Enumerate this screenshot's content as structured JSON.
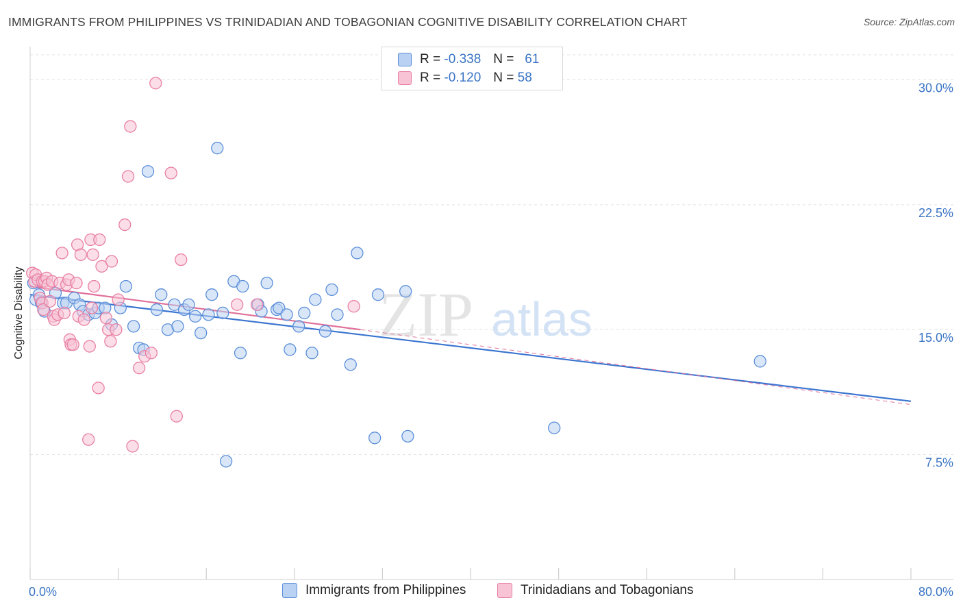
{
  "title": "IMMIGRANTS FROM PHILIPPINES VS TRINIDADIAN AND TOBAGONIAN COGNITIVE DISABILITY CORRELATION CHART",
  "source": "Source: ZipAtlas.com",
  "colors": {
    "blue": "#5b8fd9",
    "blue_fill": "#b9d1f2",
    "blue_line": "#3a74d0",
    "pink": "#e87fa3",
    "pink_fill": "#f7c3d5",
    "pink_line": "#e0709a",
    "axis_label": "#3a74c4",
    "grid": "#e2e2e2"
  },
  "legend": {
    "rows": [
      {
        "r_label": "R =",
        "r_value": "-0.338",
        "n_label": "N =",
        "n_value": "61",
        "series": "blue"
      },
      {
        "r_label": "R =",
        "r_value": "-0.120",
        "n_label": "N =",
        "n_value": "58",
        "series": "pink"
      }
    ]
  },
  "bottom_legend": [
    {
      "label": "Immigrants from Philippines",
      "series": "blue"
    },
    {
      "label": "Trinidadians and Tobagonians",
      "series": "pink"
    }
  ],
  "watermark": {
    "zip": "ZIP",
    "atlas": "atlas"
  },
  "chart_data": {
    "type": "scatter",
    "title": "IMMIGRANTS FROM PHILIPPINES VS TRINIDADIAN AND TOBAGONIAN COGNITIVE DISABILITY CORRELATION CHART",
    "xlabel": "",
    "ylabel": "Cognitive Disability",
    "xlim": [
      0,
      80
    ],
    "ylim": [
      0,
      31.5
    ],
    "x_tick_labels": [
      "0.0%",
      "80.0%"
    ],
    "y_ticks": [
      7.5,
      15.0,
      22.5,
      30.0
    ],
    "y_tick_labels": [
      "7.5%",
      "15.0%",
      "22.5%",
      "30.0%"
    ],
    "grid": true,
    "series": [
      {
        "name": "Immigrants from Philippines",
        "color": "blue",
        "points": [
          [
            0.3,
            17.8
          ],
          [
            0.5,
            16.8
          ],
          [
            0.8,
            17.1
          ],
          [
            1.0,
            16.6
          ],
          [
            1.3,
            16.1
          ],
          [
            2.3,
            17.2
          ],
          [
            3.0,
            16.6
          ],
          [
            3.3,
            16.6
          ],
          [
            4.0,
            16.9
          ],
          [
            4.5,
            16.5
          ],
          [
            4.8,
            16.1
          ],
          [
            5.3,
            15.9
          ],
          [
            5.9,
            16.0
          ],
          [
            6.2,
            16.3
          ],
          [
            6.8,
            16.3
          ],
          [
            7.4,
            15.3
          ],
          [
            8.2,
            16.3
          ],
          [
            8.7,
            17.6
          ],
          [
            9.4,
            15.2
          ],
          [
            9.9,
            13.9
          ],
          [
            10.3,
            13.8
          ],
          [
            10.7,
            24.5
          ],
          [
            11.5,
            16.2
          ],
          [
            11.9,
            17.1
          ],
          [
            12.5,
            15.0
          ],
          [
            13.1,
            16.5
          ],
          [
            13.4,
            15.2
          ],
          [
            14.0,
            16.2
          ],
          [
            14.4,
            16.5
          ],
          [
            15.0,
            15.8
          ],
          [
            15.5,
            14.8
          ],
          [
            16.2,
            15.9
          ],
          [
            16.5,
            17.1
          ],
          [
            17.0,
            25.9
          ],
          [
            17.5,
            16.0
          ],
          [
            17.8,
            7.1
          ],
          [
            18.5,
            17.9
          ],
          [
            19.1,
            13.6
          ],
          [
            19.3,
            17.6
          ],
          [
            20.7,
            16.5
          ],
          [
            21.0,
            16.1
          ],
          [
            21.5,
            17.8
          ],
          [
            22.4,
            16.2
          ],
          [
            22.6,
            16.3
          ],
          [
            23.3,
            15.9
          ],
          [
            23.6,
            13.8
          ],
          [
            24.4,
            15.2
          ],
          [
            24.9,
            16.0
          ],
          [
            25.6,
            13.6
          ],
          [
            25.9,
            16.8
          ],
          [
            26.8,
            14.9
          ],
          [
            27.4,
            17.4
          ],
          [
            27.9,
            15.9
          ],
          [
            29.1,
            12.9
          ],
          [
            29.7,
            19.6
          ],
          [
            31.3,
            8.5
          ],
          [
            31.6,
            17.1
          ],
          [
            34.1,
            17.3
          ],
          [
            34.3,
            8.6
          ],
          [
            47.6,
            9.1
          ],
          [
            66.3,
            13.1
          ]
        ]
      },
      {
        "name": "Trinidadians and Tobagonians",
        "color": "pink",
        "points": [
          [
            0.2,
            18.4
          ],
          [
            0.4,
            17.9
          ],
          [
            0.5,
            18.3
          ],
          [
            0.7,
            18.0
          ],
          [
            0.9,
            16.9
          ],
          [
            1.1,
            17.9
          ],
          [
            1.1,
            16.6
          ],
          [
            1.2,
            16.2
          ],
          [
            1.3,
            17.9
          ],
          [
            1.5,
            18.1
          ],
          [
            1.6,
            17.7
          ],
          [
            1.8,
            16.7
          ],
          [
            2.0,
            17.9
          ],
          [
            2.1,
            15.8
          ],
          [
            2.2,
            15.6
          ],
          [
            2.5,
            15.9
          ],
          [
            2.7,
            17.8
          ],
          [
            2.9,
            19.6
          ],
          [
            3.1,
            16.0
          ],
          [
            3.3,
            17.7
          ],
          [
            3.5,
            18.0
          ],
          [
            3.6,
            14.4
          ],
          [
            3.7,
            14.1
          ],
          [
            3.9,
            14.1
          ],
          [
            4.2,
            17.8
          ],
          [
            4.3,
            20.1
          ],
          [
            4.4,
            15.8
          ],
          [
            4.6,
            19.5
          ],
          [
            4.9,
            15.6
          ],
          [
            5.3,
            8.4
          ],
          [
            5.4,
            14.0
          ],
          [
            5.5,
            20.4
          ],
          [
            5.6,
            16.3
          ],
          [
            5.7,
            19.5
          ],
          [
            5.8,
            17.6
          ],
          [
            6.2,
            11.5
          ],
          [
            6.3,
            20.4
          ],
          [
            6.5,
            18.8
          ],
          [
            6.9,
            15.7
          ],
          [
            7.1,
            15.0
          ],
          [
            7.3,
            14.3
          ],
          [
            7.4,
            19.1
          ],
          [
            7.8,
            15.0
          ],
          [
            8.0,
            16.8
          ],
          [
            8.6,
            21.3
          ],
          [
            8.9,
            24.2
          ],
          [
            9.1,
            27.2
          ],
          [
            9.3,
            8.0
          ],
          [
            9.9,
            12.7
          ],
          [
            10.4,
            13.4
          ],
          [
            11.0,
            13.6
          ],
          [
            11.4,
            29.8
          ],
          [
            12.8,
            24.4
          ],
          [
            13.3,
            9.8
          ],
          [
            13.7,
            19.2
          ],
          [
            18.8,
            16.5
          ],
          [
            20.6,
            16.5
          ],
          [
            29.4,
            16.4
          ]
        ]
      }
    ],
    "trend_lines": [
      {
        "series": "Immigrants from Philippines",
        "x": [
          0,
          80
        ],
        "y": [
          17.1,
          10.7
        ],
        "style": "solid"
      },
      {
        "series": "Trinidadians and Tobagonians",
        "x": [
          0,
          30
        ],
        "y": [
          17.6,
          15.0
        ],
        "style": "solid"
      },
      {
        "series": "Trinidadians and Tobagonians",
        "x": [
          30,
          80
        ],
        "y": [
          15.0,
          10.5
        ],
        "style": "dashed"
      }
    ]
  }
}
